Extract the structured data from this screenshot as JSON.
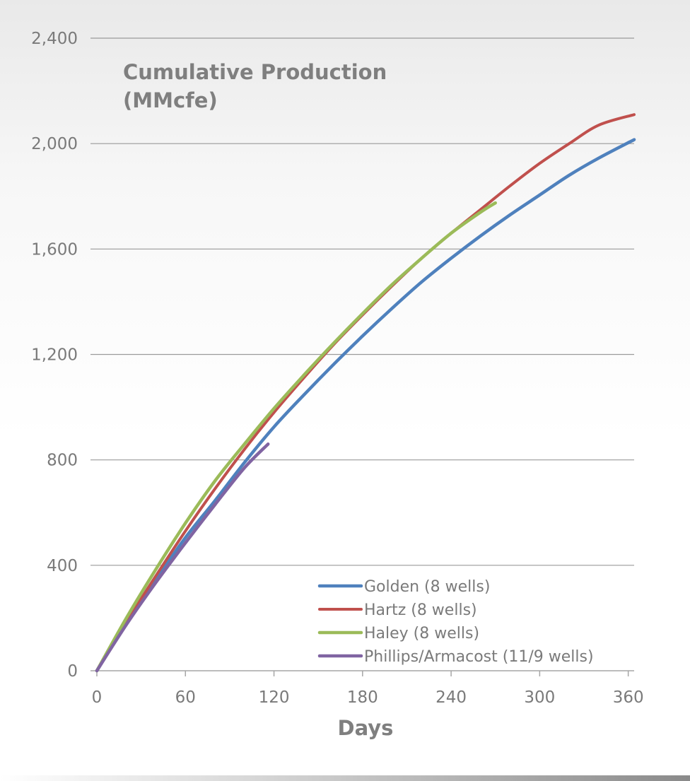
{
  "chart_data": {
    "type": "line",
    "title": "Cumulative Production\n(MMcfe)",
    "xlabel": "Days",
    "ylabel": "",
    "xlim": [
      0,
      364
    ],
    "ylim": [
      0,
      2400
    ],
    "xticks": [
      0,
      60,
      120,
      180,
      240,
      300,
      360
    ],
    "yticks": [
      0,
      400,
      800,
      1200,
      1600,
      2000,
      2400
    ],
    "xtick_labels": [
      "0",
      "60",
      "120",
      "180",
      "240",
      "300",
      "360"
    ],
    "ytick_labels": [
      "0",
      "400",
      "800",
      "1,200",
      "1,600",
      "2,000",
      "2,400"
    ],
    "grid": "horizontal",
    "legend": "bottom-right",
    "series": [
      {
        "name": "Golden (8 wells)",
        "color": "#4f81bd",
        "x": [
          0,
          20,
          40,
          60,
          80,
          100,
          120,
          140,
          160,
          180,
          200,
          220,
          240,
          260,
          280,
          300,
          320,
          340,
          364
        ],
        "y": [
          0,
          180,
          345,
          505,
          645,
          790,
          925,
          1045,
          1160,
          1270,
          1375,
          1475,
          1565,
          1650,
          1730,
          1805,
          1880,
          1945,
          2015
        ]
      },
      {
        "name": "Hartz (8 wells)",
        "color": "#c0504d",
        "x": [
          0,
          20,
          40,
          60,
          80,
          100,
          120,
          140,
          160,
          180,
          200,
          220,
          240,
          260,
          280,
          300,
          320,
          340,
          364
        ],
        "y": [
          0,
          185,
          360,
          530,
          690,
          840,
          980,
          1110,
          1235,
          1350,
          1460,
          1565,
          1660,
          1750,
          1840,
          1925,
          2000,
          2070,
          2110
        ]
      },
      {
        "name": "Haley (8 wells)",
        "color": "#9bbb59",
        "x": [
          0,
          20,
          40,
          60,
          80,
          100,
          120,
          140,
          160,
          180,
          200,
          220,
          240,
          260,
          270
        ],
        "y": [
          0,
          200,
          385,
          560,
          720,
          860,
          995,
          1120,
          1240,
          1355,
          1465,
          1565,
          1660,
          1740,
          1775
        ]
      },
      {
        "name": "Phillips/Armacost (11/9 wells)",
        "color": "#8064a2",
        "x": [
          0,
          20,
          40,
          60,
          80,
          100,
          116
        ],
        "y": [
          0,
          175,
          335,
          485,
          630,
          770,
          860
        ]
      }
    ]
  }
}
